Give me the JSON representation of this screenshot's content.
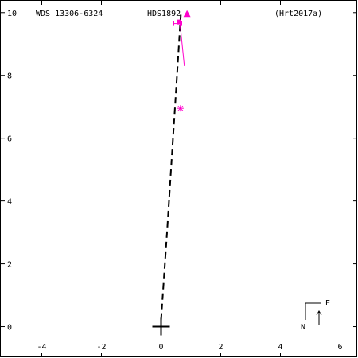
{
  "header": {
    "wds": "WDS 13306-6324",
    "discoverer": "HDS1892",
    "reference": "(Hrt2017a)"
  },
  "compass": {
    "north": "N",
    "east": "E"
  },
  "chart_data": {
    "type": "scatter",
    "title": "",
    "xlabel": "",
    "ylabel": "",
    "xlim": [
      -5.4,
      6.6
    ],
    "ylim": [
      -1.0,
      10.4
    ],
    "x_ticks": [
      -4,
      -2,
      0,
      2,
      4,
      6
    ],
    "y_ticks": [
      0,
      2,
      4,
      6,
      8,
      10
    ],
    "grid": false,
    "primary": {
      "x": 0,
      "y": 0
    },
    "orbit": [
      [
        0.0,
        0.2
      ],
      [
        0.2,
        3.0
      ],
      [
        0.4,
        6.0
      ],
      [
        0.5,
        7.5
      ],
      [
        0.6,
        9.0
      ],
      [
        0.67,
        10.05
      ]
    ],
    "residual_line": [
      [
        0.63,
        9.7
      ],
      [
        0.78,
        8.3
      ]
    ],
    "observations": [
      {
        "marker": "star",
        "x": 0.65,
        "y": 6.95
      },
      {
        "marker": "triangle",
        "x": 0.87,
        "y": 9.95
      },
      {
        "marker": "square",
        "x": 0.6,
        "y": 9.7
      },
      {
        "marker": "errorbar",
        "x": 0.56,
        "y": 9.65
      }
    ],
    "colors": {
      "orbit": "#000000",
      "observations": "#ff00cc",
      "residual": "#ff00cc"
    }
  }
}
